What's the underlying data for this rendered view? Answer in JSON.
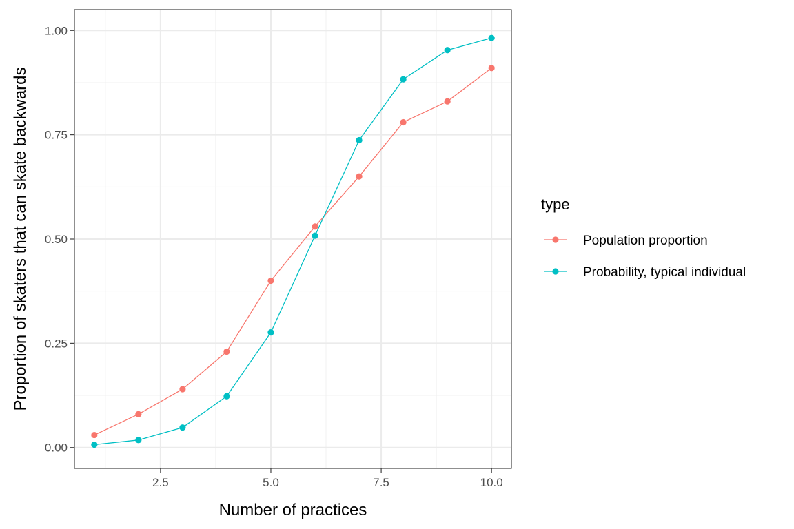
{
  "chart_data": {
    "type": "line",
    "title": "",
    "xlabel": "Number of practices",
    "ylabel": "Proportion of skaters that can skate backwards",
    "xlim": [
      0.55,
      10.45
    ],
    "ylim": [
      -0.05,
      1.05
    ],
    "x_ticks": [
      2.5,
      5.0,
      7.5,
      10.0
    ],
    "x_tick_labels": [
      "2.5",
      "5.0",
      "7.5",
      "10.0"
    ],
    "x_minor_ticks": [
      1.25,
      3.75,
      6.25,
      8.75
    ],
    "y_ticks": [
      0.0,
      0.25,
      0.5,
      0.75,
      1.0
    ],
    "y_tick_labels": [
      "0.00",
      "0.25",
      "0.50",
      "0.75",
      "1.00"
    ],
    "y_minor_ticks": [
      0.125,
      0.375,
      0.625,
      0.875
    ],
    "grid": true,
    "legend": {
      "title": "type",
      "position": "right"
    },
    "x": [
      1,
      2,
      3,
      4,
      5,
      6,
      7,
      8,
      9,
      10
    ],
    "series": [
      {
        "name": "Population proportion",
        "color": "#F8766D",
        "values": [
          0.03,
          0.08,
          0.14,
          0.23,
          0.4,
          0.53,
          0.65,
          0.78,
          0.83,
          0.91
        ]
      },
      {
        "name": "Probability, typical individual",
        "color": "#00BFC4",
        "values": [
          0.007,
          0.018,
          0.048,
          0.123,
          0.276,
          0.508,
          0.737,
          0.883,
          0.953,
          0.982
        ]
      }
    ]
  }
}
